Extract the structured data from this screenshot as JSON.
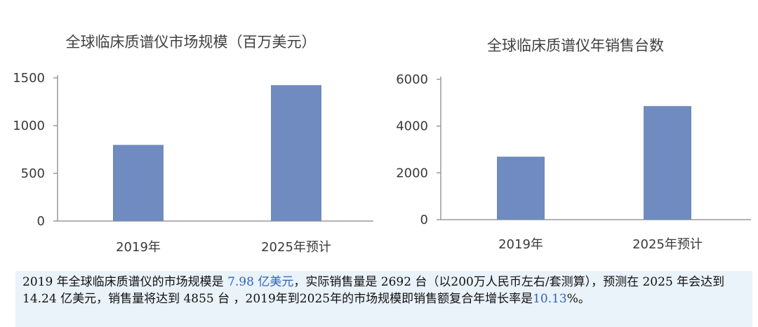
{
  "chart_data": [
    {
      "type": "bar",
      "title": "全球临床质谱仪市场规模（百万美元）",
      "categories": [
        "2019年",
        "2025年预计"
      ],
      "values": [
        798,
        1424
      ],
      "ylim": [
        0,
        1500
      ],
      "yticks": [
        0,
        500,
        1000,
        1500
      ],
      "grid": false,
      "bar_color": "#6f8bbf"
    },
    {
      "type": "bar",
      "title": "全球临床质谱仪年销售台数",
      "categories": [
        "2019年",
        "2025年预计"
      ],
      "values": [
        2692,
        4855
      ],
      "ylim": [
        0,
        6000
      ],
      "yticks": [
        0,
        2000,
        4000,
        6000
      ],
      "grid": false,
      "bar_color": "#6f8bbf"
    }
  ],
  "caption": {
    "seg1": "2019 年全球临床质谱仪的市场规模是 ",
    "hl1": "7.98 亿美元",
    "seg2": "，实际销售量是 2692 台（以200万人民币左右/套测算），预测在 2025 年会达到 14.24 亿美元，销售量将达到 4855 台 ，2019年到2025年的市场规模即销售额复合年增长率是",
    "hl2": "10.13",
    "seg3": "%。"
  },
  "colors": {
    "bar": "#6f8bbf",
    "highlight": "#2f63b8",
    "caption_bg": "#eaf2fa"
  }
}
